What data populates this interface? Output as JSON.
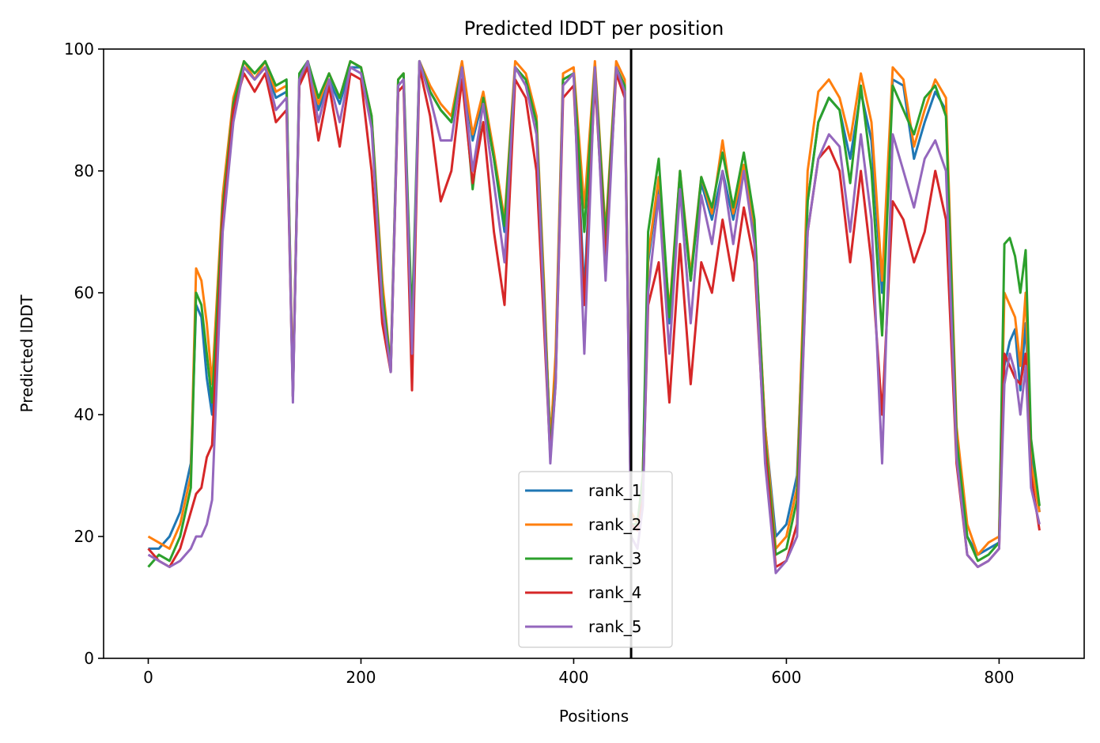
{
  "chart_data": {
    "type": "line",
    "title": "Predicted lDDT per position",
    "xlabel": "Positions",
    "ylabel": "Predicted lDDT",
    "xlim": [
      -42,
      880
    ],
    "ylim": [
      0,
      100
    ],
    "xticks": [
      0,
      200,
      400,
      600,
      800
    ],
    "yticks": [
      0,
      20,
      40,
      60,
      80,
      100
    ],
    "grid": false,
    "legend_position": "bottom-center",
    "chain_break_x": 454,
    "series": [
      {
        "name": "rank_1",
        "color": "#1f77b4",
        "x": [
          0,
          10,
          20,
          30,
          40,
          45,
          50,
          55,
          60,
          70,
          80,
          90,
          100,
          110,
          120,
          130,
          136,
          142,
          150,
          160,
          170,
          180,
          190,
          200,
          210,
          220,
          228,
          235,
          240,
          248,
          255,
          265,
          275,
          285,
          295,
          305,
          315,
          325,
          335,
          345,
          355,
          365,
          372,
          378,
          383,
          390,
          400,
          410,
          420,
          430,
          440,
          448,
          454,
          460,
          465,
          470,
          480,
          490,
          500,
          510,
          520,
          530,
          540,
          550,
          560,
          570,
          580,
          590,
          600,
          610,
          620,
          630,
          640,
          650,
          660,
          670,
          680,
          690,
          700,
          710,
          720,
          730,
          740,
          750,
          760,
          770,
          780,
          790,
          800,
          805,
          810,
          815,
          820,
          825,
          830,
          838
        ],
        "y": [
          18,
          18,
          20,
          24,
          32,
          58,
          56,
          46,
          40,
          75,
          90,
          97,
          95,
          97,
          92,
          93,
          43,
          94,
          98,
          90,
          95,
          91,
          97,
          97,
          88,
          60,
          47,
          94,
          95,
          48,
          98,
          93,
          90,
          88,
          97,
          85,
          92,
          82,
          70,
          97,
          95,
          88,
          60,
          36,
          48,
          95,
          96,
          60,
          97,
          68,
          97,
          94,
          24,
          22,
          28,
          65,
          78,
          55,
          79,
          62,
          78,
          72,
          80,
          72,
          80,
          70,
          38,
          20,
          22,
          30,
          75,
          88,
          92,
          90,
          82,
          93,
          85,
          60,
          95,
          94,
          82,
          88,
          93,
          90,
          35,
          20,
          17,
          18,
          19,
          48,
          52,
          54,
          44,
          55,
          34,
          24
        ]
      },
      {
        "name": "rank_2",
        "color": "#ff7f0e",
        "x": [
          0,
          10,
          20,
          30,
          40,
          45,
          50,
          55,
          60,
          70,
          80,
          90,
          100,
          110,
          120,
          130,
          136,
          142,
          150,
          160,
          170,
          180,
          190,
          200,
          210,
          220,
          228,
          235,
          240,
          248,
          255,
          265,
          275,
          285,
          295,
          305,
          315,
          325,
          335,
          345,
          355,
          365,
          372,
          378,
          383,
          390,
          400,
          410,
          420,
          430,
          440,
          448,
          454,
          460,
          465,
          470,
          480,
          490,
          500,
          510,
          520,
          530,
          540,
          550,
          560,
          570,
          580,
          590,
          600,
          610,
          620,
          630,
          640,
          650,
          660,
          670,
          680,
          690,
          700,
          710,
          720,
          730,
          740,
          750,
          760,
          770,
          780,
          790,
          800,
          805,
          810,
          815,
          820,
          825,
          830,
          838
        ],
        "y": [
          20,
          19,
          18,
          22,
          30,
          64,
          62,
          55,
          45,
          76,
          92,
          98,
          95,
          98,
          93,
          94,
          44,
          95,
          98,
          91,
          96,
          92,
          98,
          97,
          89,
          62,
          48,
          95,
          96,
          50,
          98,
          94,
          91,
          89,
          98,
          86,
          93,
          83,
          72,
          98,
          96,
          89,
          62,
          35,
          50,
          96,
          97,
          74,
          98,
          70,
          98,
          95,
          24,
          22,
          30,
          66,
          79,
          57,
          80,
          63,
          79,
          73,
          85,
          73,
          81,
          71,
          38,
          18,
          20,
          28,
          80,
          93,
          95,
          92,
          85,
          96,
          88,
          62,
          97,
          95,
          84,
          90,
          95,
          92,
          38,
          22,
          17,
          19,
          20,
          60,
          58,
          56,
          48,
          60,
          32,
          24
        ]
      },
      {
        "name": "rank_3",
        "color": "#2ca02c",
        "x": [
          0,
          10,
          20,
          30,
          40,
          45,
          50,
          55,
          60,
          70,
          80,
          90,
          100,
          110,
          120,
          130,
          136,
          142,
          150,
          160,
          170,
          180,
          190,
          200,
          210,
          220,
          228,
          235,
          240,
          248,
          255,
          265,
          275,
          285,
          295,
          305,
          315,
          325,
          335,
          345,
          355,
          365,
          372,
          378,
          383,
          390,
          400,
          410,
          420,
          430,
          440,
          448,
          454,
          460,
          465,
          470,
          480,
          490,
          500,
          510,
          520,
          530,
          540,
          550,
          560,
          570,
          580,
          590,
          600,
          610,
          620,
          630,
          640,
          650,
          660,
          670,
          680,
          690,
          700,
          710,
          720,
          730,
          740,
          750,
          760,
          770,
          780,
          790,
          800,
          805,
          810,
          815,
          820,
          825,
          830,
          838
        ],
        "y": [
          15,
          17,
          16,
          20,
          28,
          60,
          58,
          50,
          42,
          74,
          91,
          98,
          96,
          98,
          94,
          95,
          43,
          96,
          98,
          92,
          96,
          92,
          98,
          97,
          89,
          60,
          48,
          95,
          96,
          55,
          98,
          93,
          90,
          88,
          97,
          77,
          92,
          82,
          71,
          97,
          95,
          88,
          60,
          34,
          46,
          95,
          96,
          70,
          97,
          69,
          97,
          94,
          22,
          22,
          30,
          70,
          82,
          56,
          80,
          62,
          79,
          74,
          83,
          74,
          83,
          72,
          36,
          17,
          18,
          26,
          75,
          88,
          92,
          90,
          78,
          94,
          80,
          53,
          94,
          90,
          86,
          92,
          94,
          89,
          36,
          20,
          16,
          17,
          19,
          68,
          69,
          66,
          60,
          67,
          36,
          25
        ]
      },
      {
        "name": "rank_4",
        "color": "#d62728",
        "x": [
          0,
          10,
          20,
          30,
          40,
          45,
          50,
          55,
          60,
          70,
          80,
          90,
          100,
          110,
          120,
          130,
          136,
          142,
          150,
          160,
          170,
          180,
          190,
          200,
          210,
          220,
          228,
          235,
          240,
          248,
          255,
          265,
          275,
          285,
          295,
          305,
          315,
          325,
          335,
          345,
          355,
          365,
          372,
          378,
          383,
          390,
          400,
          410,
          420,
          430,
          440,
          448,
          454,
          460,
          465,
          470,
          480,
          490,
          500,
          510,
          520,
          530,
          540,
          550,
          560,
          570,
          580,
          590,
          600,
          610,
          620,
          630,
          640,
          650,
          660,
          670,
          680,
          690,
          700,
          710,
          720,
          730,
          740,
          750,
          760,
          770,
          780,
          790,
          800,
          805,
          810,
          815,
          820,
          825,
          830,
          838
        ],
        "y": [
          18,
          16,
          15,
          18,
          24,
          27,
          28,
          33,
          35,
          72,
          90,
          96,
          93,
          96,
          88,
          90,
          43,
          94,
          97,
          85,
          94,
          84,
          96,
          95,
          80,
          55,
          47,
          93,
          94,
          44,
          97,
          89,
          75,
          80,
          95,
          78,
          88,
          70,
          58,
          95,
          92,
          80,
          55,
          33,
          45,
          92,
          94,
          58,
          95,
          65,
          96,
          92,
          22,
          21,
          26,
          58,
          65,
          42,
          68,
          45,
          65,
          60,
          72,
          62,
          74,
          65,
          34,
          15,
          16,
          22,
          70,
          82,
          84,
          80,
          65,
          80,
          65,
          40,
          75,
          72,
          65,
          70,
          80,
          72,
          32,
          17,
          15,
          16,
          18,
          50,
          48,
          46,
          45,
          50,
          30,
          21
        ]
      },
      {
        "name": "rank_5",
        "color": "#9467bd",
        "x": [
          0,
          10,
          20,
          30,
          40,
          45,
          50,
          55,
          60,
          70,
          80,
          90,
          100,
          110,
          120,
          130,
          136,
          142,
          150,
          160,
          170,
          180,
          190,
          200,
          210,
          220,
          228,
          235,
          240,
          248,
          255,
          265,
          275,
          285,
          295,
          305,
          315,
          325,
          335,
          345,
          355,
          365,
          372,
          378,
          383,
          390,
          400,
          410,
          420,
          430,
          440,
          448,
          454,
          460,
          465,
          470,
          480,
          490,
          500,
          510,
          520,
          530,
          540,
          550,
          560,
          570,
          580,
          590,
          600,
          610,
          620,
          630,
          640,
          650,
          660,
          670,
          680,
          690,
          700,
          710,
          720,
          730,
          740,
          750,
          760,
          770,
          780,
          790,
          800,
          805,
          810,
          815,
          820,
          825,
          830,
          838
        ],
        "y": [
          17,
          16,
          15,
          16,
          18,
          20,
          20,
          22,
          26,
          70,
          88,
          97,
          95,
          97,
          90,
          92,
          42,
          95,
          98,
          88,
          95,
          88,
          97,
          96,
          87,
          58,
          47,
          94,
          95,
          50,
          98,
          92,
          85,
          85,
          97,
          80,
          91,
          78,
          65,
          97,
          94,
          86,
          58,
          32,
          45,
          94,
          96,
          50,
          97,
          62,
          97,
          93,
          20,
          18,
          25,
          60,
          76,
          50,
          77,
          55,
          76,
          68,
          80,
          68,
          80,
          68,
          32,
          14,
          16,
          20,
          70,
          82,
          86,
          84,
          70,
          86,
          72,
          32,
          86,
          80,
          74,
          82,
          85,
          80,
          33,
          17,
          15,
          16,
          18,
          45,
          50,
          47,
          40,
          48,
          28,
          22
        ]
      }
    ]
  }
}
